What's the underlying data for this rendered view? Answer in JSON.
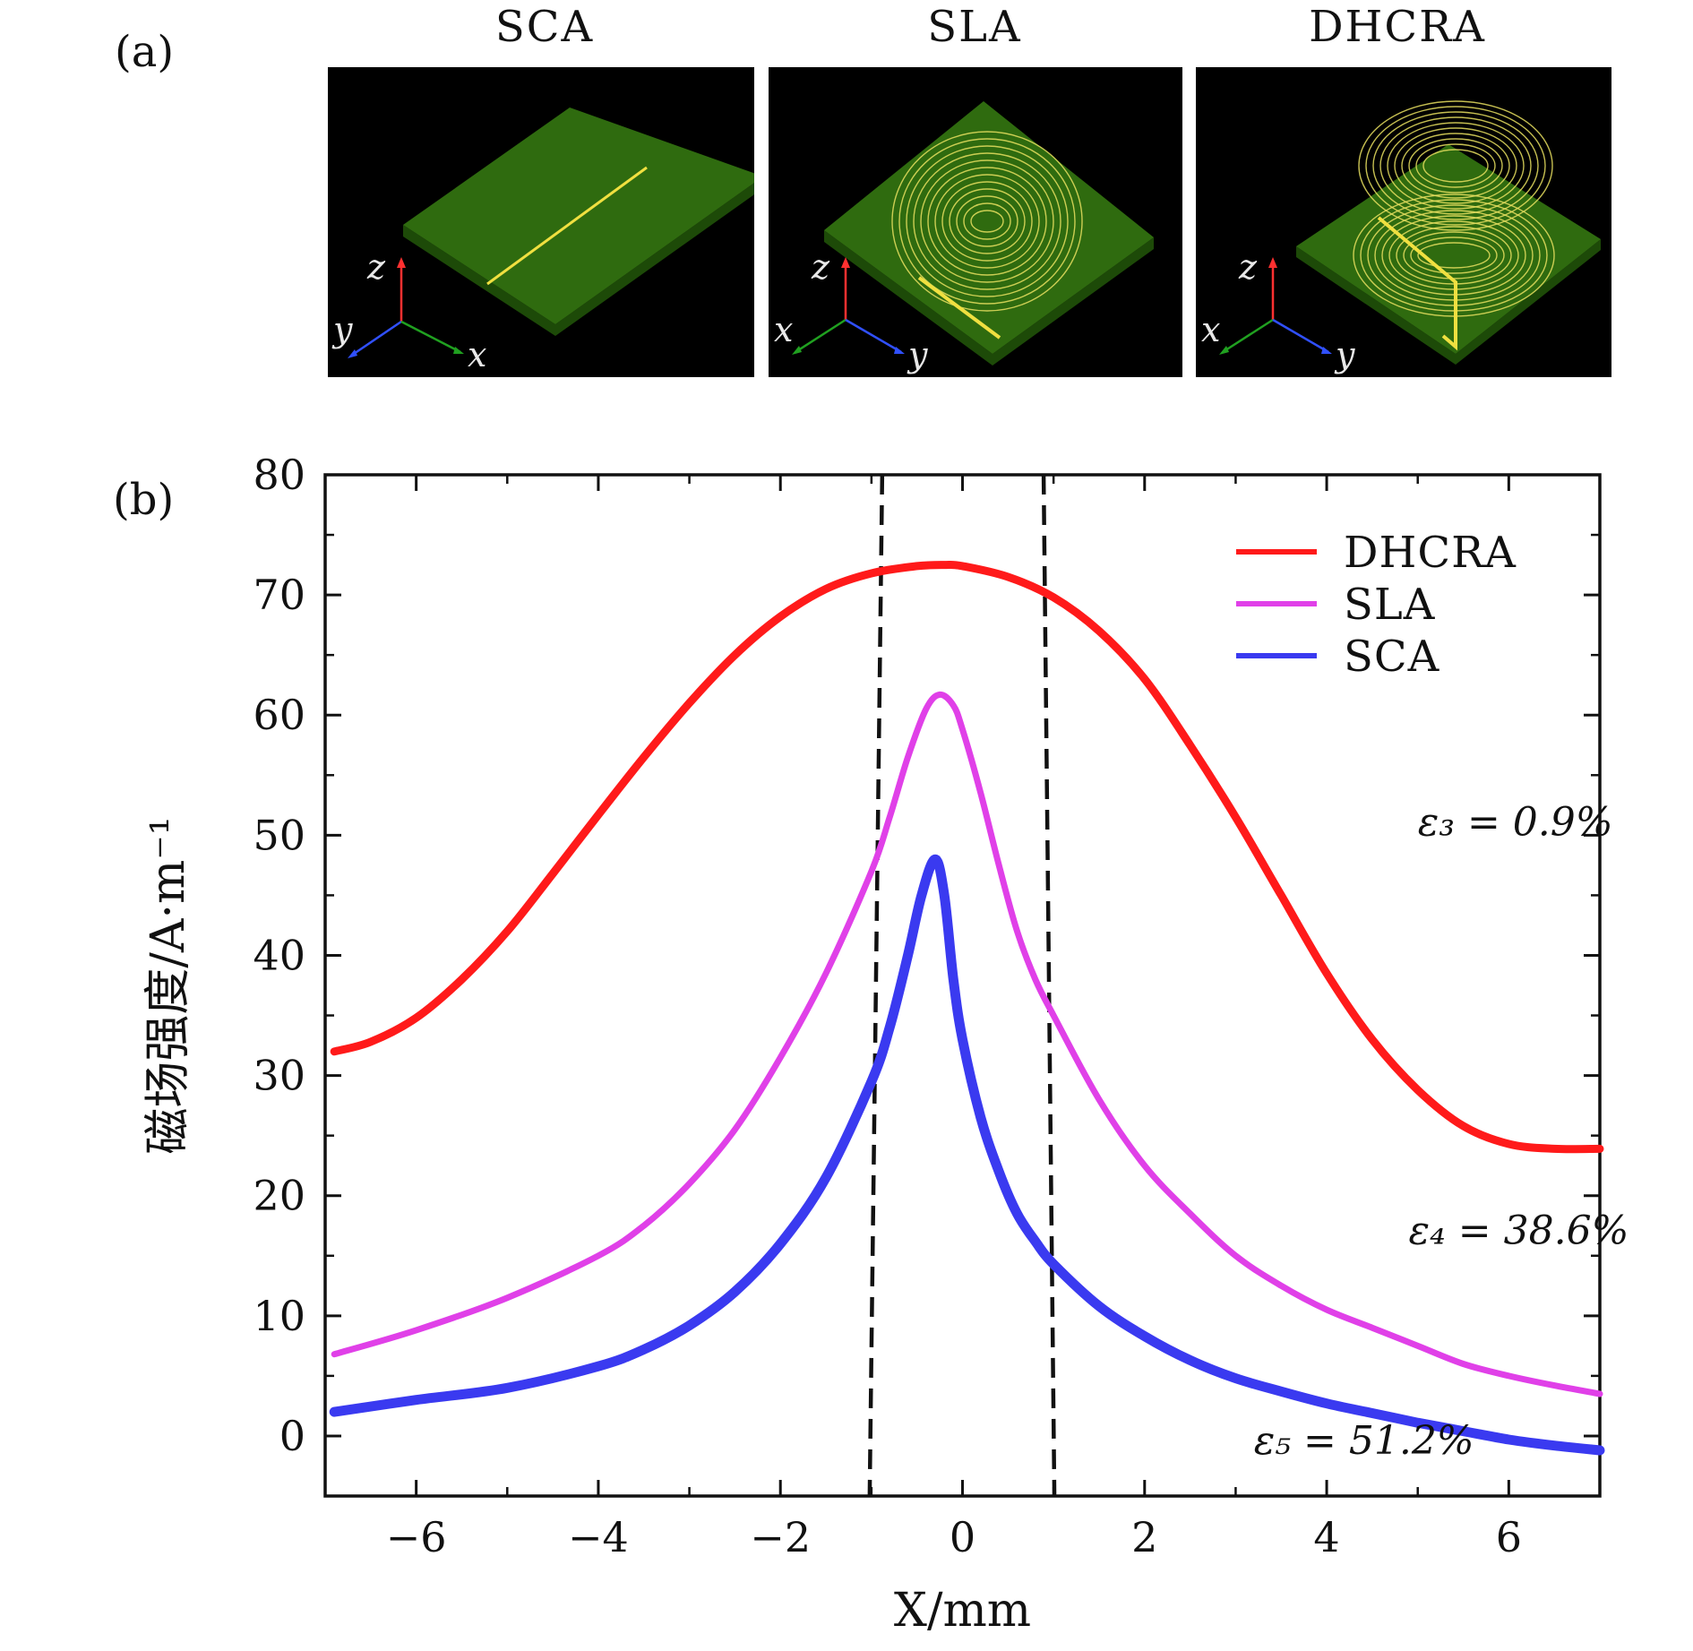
{
  "panel_a": {
    "label": "(a)",
    "scenes": [
      {
        "title": "SCA",
        "axes": [
          "z",
          "y",
          "x"
        ]
      },
      {
        "title": "SLA",
        "axes": [
          "z",
          "x",
          "y"
        ]
      },
      {
        "title": "DHCRA",
        "axes": [
          "z",
          "x",
          "y"
        ]
      }
    ]
  },
  "panel_b": {
    "label": "(b)"
  },
  "colors": {
    "DHCRA": "#ff1a1a",
    "SLA": "#e040e8",
    "SCA": "#3a3af0",
    "board": "#2f6b0f",
    "coil": "#e8e060"
  },
  "chart_data": {
    "type": "line",
    "xlabel": "X/mm",
    "ylabel": "磁场强度/A·m⁻¹",
    "xlim": [
      -7,
      7
    ],
    "ylim": [
      -5,
      80
    ],
    "xticks": [
      -6,
      -4,
      -2,
      0,
      2,
      4,
      6
    ],
    "xtick_labels": [
      "−6",
      "−4",
      "−2",
      "0",
      "2",
      "4",
      "6"
    ],
    "yticks": [
      0,
      10,
      20,
      30,
      40,
      50,
      60,
      70,
      80
    ],
    "ytick_labels": [
      "0",
      "10",
      "20",
      "30",
      "40",
      "50",
      "60",
      "70",
      "80"
    ],
    "legend_position": "top-right",
    "vlines": [
      -1.0,
      0.95
    ],
    "series": [
      {
        "name": "DHCRA",
        "x": [
          -6.9,
          -6.5,
          -6.0,
          -5.5,
          -5.0,
          -4.5,
          -4.0,
          -3.5,
          -3.0,
          -2.5,
          -2.0,
          -1.5,
          -1.0,
          -0.5,
          -0.2,
          0.0,
          0.5,
          1.0,
          1.5,
          2.0,
          2.5,
          3.0,
          3.5,
          4.0,
          4.5,
          5.0,
          5.5,
          6.0,
          6.5,
          7.0
        ],
        "y": [
          32.0,
          32.8,
          34.8,
          38.0,
          42.0,
          46.8,
          51.7,
          56.5,
          61.0,
          65.0,
          68.2,
          70.5,
          71.8,
          72.4,
          72.5,
          72.4,
          71.5,
          69.8,
          67.0,
          63.0,
          57.5,
          51.5,
          45.0,
          38.5,
          33.0,
          28.8,
          25.8,
          24.3,
          23.9,
          23.9
        ]
      },
      {
        "name": "SLA",
        "x": [
          -6.9,
          -6.0,
          -5.0,
          -4.0,
          -3.5,
          -3.0,
          -2.5,
          -2.0,
          -1.5,
          -1.0,
          -0.8,
          -0.6,
          -0.4,
          -0.25,
          -0.1,
          0.0,
          0.2,
          0.4,
          0.6,
          0.8,
          1.0,
          1.5,
          2.0,
          2.5,
          3.0,
          3.5,
          4.0,
          4.5,
          5.0,
          5.5,
          6.0,
          6.5,
          7.0
        ],
        "y": [
          6.8,
          8.8,
          11.5,
          15.0,
          17.5,
          21.0,
          25.5,
          31.5,
          38.5,
          47.0,
          51.5,
          56.5,
          60.5,
          61.7,
          60.8,
          58.8,
          53.5,
          47.5,
          42.0,
          38.0,
          35.0,
          28.0,
          22.5,
          18.5,
          15.0,
          12.5,
          10.5,
          9.0,
          7.5,
          6.0,
          5.0,
          4.2,
          3.5
        ]
      },
      {
        "name": "SCA",
        "x": [
          -6.9,
          -6.0,
          -5.0,
          -4.0,
          -3.5,
          -3.0,
          -2.5,
          -2.0,
          -1.5,
          -1.0,
          -0.8,
          -0.6,
          -0.45,
          -0.3,
          -0.2,
          -0.1,
          0.0,
          0.2,
          0.4,
          0.6,
          0.8,
          1.0,
          1.5,
          2.0,
          2.5,
          3.0,
          3.5,
          4.0,
          4.5,
          5.0,
          5.5,
          6.0,
          6.5,
          7.0
        ],
        "y": [
          2.0,
          3.0,
          4.0,
          5.8,
          7.2,
          9.2,
          12.0,
          16.0,
          21.5,
          29.5,
          34.0,
          40.0,
          45.0,
          48.0,
          45.0,
          38.0,
          33.0,
          26.5,
          22.0,
          18.5,
          16.2,
          14.3,
          10.8,
          8.3,
          6.3,
          4.8,
          3.7,
          2.7,
          1.9,
          1.1,
          0.4,
          -0.3,
          -0.8,
          -1.2
        ]
      }
    ],
    "annotations": [
      {
        "text": "ε₃ = 0.9%",
        "x": 5.0,
        "y": 50
      },
      {
        "text": "ε₄ = 38.6%",
        "x": 4.9,
        "y": 16
      },
      {
        "text": "ε₅ = 51.2%",
        "x": 3.2,
        "y": -1.5
      }
    ]
  }
}
